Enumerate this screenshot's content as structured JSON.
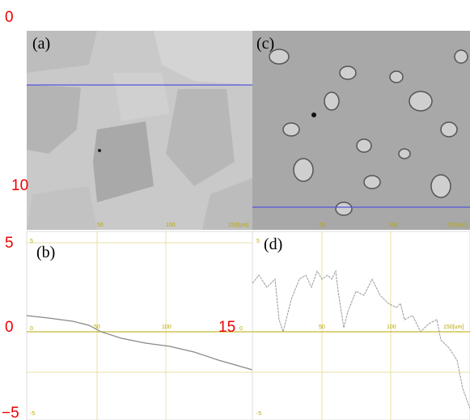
{
  "panels": [
    {
      "label": "(a)",
      "scale": [
        "50",
        "100",
        "150[um]"
      ]
    },
    {
      "label": "(c)",
      "scale": [
        "50",
        "100",
        "150[um]"
      ]
    },
    {
      "label": "(b)",
      "ticks": [
        "5",
        "0",
        "50",
        "100",
        "-5"
      ]
    },
    {
      "label": "(d)",
      "ticks": [
        "5",
        "0",
        "50",
        "100",
        "150[um]",
        "-5"
      ]
    }
  ],
  "annotations": [
    "0",
    "10",
    "5",
    "0",
    "15",
    "−5"
  ]
}
